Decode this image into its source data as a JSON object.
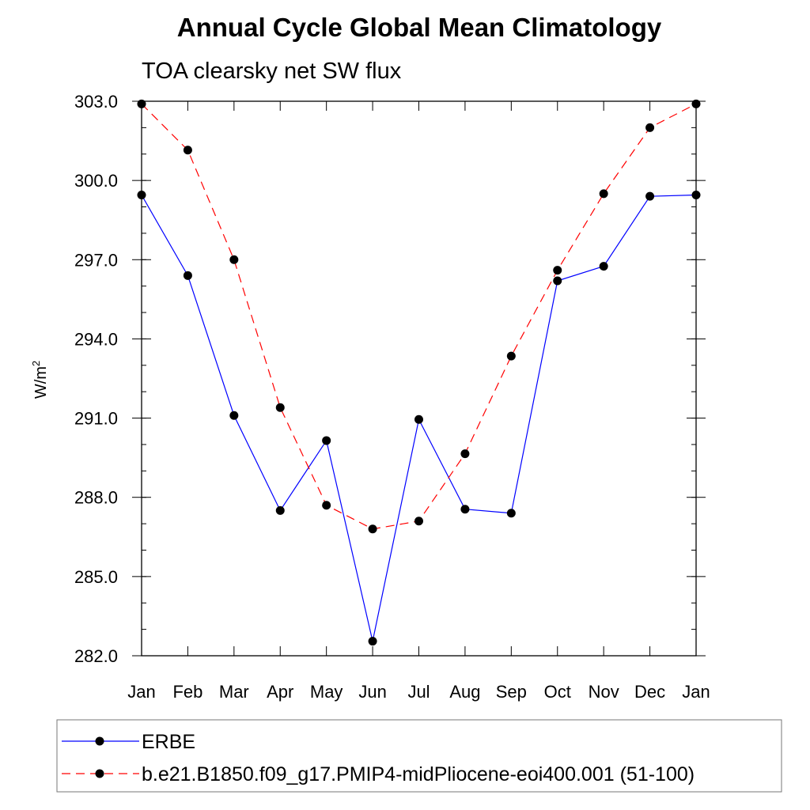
{
  "chart_data": {
    "type": "line",
    "title": "Annual Cycle Global Mean Climatology",
    "subtitle": "TOA clearsky net SW flux",
    "ylabel_base": "W/m",
    "ylabel_sup": "2",
    "xlabel": "",
    "categories": [
      "Jan",
      "Feb",
      "Mar",
      "Apr",
      "May",
      "Jun",
      "Jul",
      "Aug",
      "Sep",
      "Oct",
      "Nov",
      "Dec",
      "Jan"
    ],
    "ylim": [
      282.0,
      303.0
    ],
    "yticks": [
      282.0,
      285.0,
      288.0,
      291.0,
      294.0,
      297.0,
      300.0,
      303.0
    ],
    "ytick_labels": [
      "282.0",
      "285.0",
      "288.0",
      "291.0",
      "294.0",
      "297.0",
      "300.0",
      "303.0"
    ],
    "minor_step": 1.0,
    "series": [
      {
        "name": "ERBE",
        "color": "#0000ff",
        "dash": "solid",
        "values": [
          299.45,
          296.4,
          291.1,
          287.5,
          290.15,
          282.55,
          290.95,
          287.55,
          287.4,
          296.2,
          296.75,
          299.4,
          299.45
        ]
      },
      {
        "name": "b.e21.B1850.f09_g17.PMIP4-midPliocene-eoi400.001 (51-100)",
        "color": "#ff0000",
        "dash": "dashed",
        "values": [
          302.9,
          301.15,
          297.0,
          291.4,
          287.7,
          286.8,
          287.1,
          289.65,
          293.35,
          296.6,
          299.5,
          302.0,
          302.9
        ]
      }
    ],
    "marker_color": "#000000",
    "legend": "bottom",
    "grid": false
  }
}
